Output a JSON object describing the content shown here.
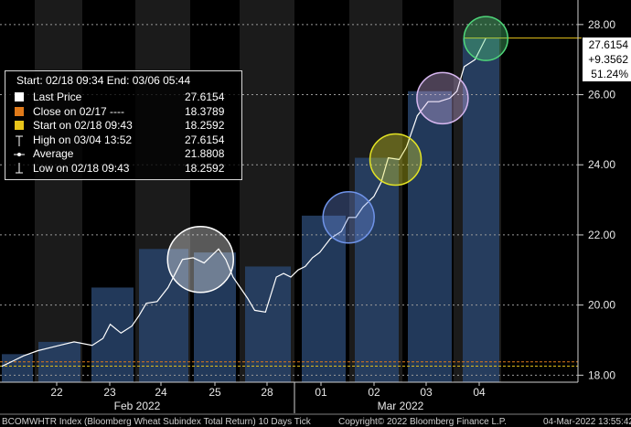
{
  "chart_data": {
    "type": "line",
    "title": "",
    "ylim": [
      17.8,
      28.7
    ],
    "y_ticks": [
      "28.00",
      "26.00",
      "24.00",
      "22.00",
      "20.00",
      "18.00"
    ],
    "x_day_labels": [
      "22",
      "23",
      "24",
      "25",
      "28",
      "01",
      "02",
      "03",
      "04"
    ],
    "month_labels": [
      "Feb 2022",
      "Mar 2022"
    ],
    "series": [
      {
        "name": "Last Price",
        "color": "#ffffff",
        "points": [
          [
            0,
            18.25
          ],
          [
            0.3,
            18.4
          ],
          [
            0.6,
            18.55
          ],
          [
            1.0,
            18.7
          ],
          [
            1.6,
            18.85
          ],
          [
            2.0,
            18.95
          ],
          [
            2.5,
            18.85
          ],
          [
            2.8,
            19.05
          ],
          [
            3.0,
            19.45
          ],
          [
            3.3,
            19.2
          ],
          [
            3.6,
            19.4
          ],
          [
            3.8,
            19.7
          ],
          [
            4.0,
            20.05
          ],
          [
            4.3,
            20.1
          ],
          [
            4.6,
            20.5
          ],
          [
            5.0,
            21.3
          ],
          [
            5.3,
            21.35
          ],
          [
            5.6,
            21.2
          ],
          [
            5.8,
            21.4
          ],
          [
            6.0,
            21.6
          ],
          [
            6.2,
            21.3
          ],
          [
            6.4,
            20.8
          ],
          [
            6.6,
            20.5
          ],
          [
            6.8,
            20.2
          ],
          [
            7.0,
            19.85
          ],
          [
            7.3,
            19.8
          ],
          [
            7.6,
            20.8
          ],
          [
            7.8,
            20.9
          ],
          [
            8.0,
            20.8
          ],
          [
            8.2,
            21.0
          ],
          [
            8.4,
            21.1
          ],
          [
            8.6,
            21.35
          ],
          [
            8.8,
            21.5
          ],
          [
            9.1,
            21.9
          ],
          [
            9.4,
            22.1
          ],
          [
            9.6,
            22.5
          ],
          [
            9.8,
            22.5
          ],
          [
            10.0,
            22.8
          ],
          [
            10.3,
            23.1
          ],
          [
            10.5,
            23.5
          ],
          [
            10.7,
            24.2
          ],
          [
            11.0,
            24.15
          ],
          [
            11.2,
            24.5
          ],
          [
            11.5,
            25.4
          ],
          [
            11.8,
            25.8
          ],
          [
            12.1,
            25.8
          ],
          [
            12.4,
            25.9
          ],
          [
            12.6,
            26.1
          ],
          [
            12.8,
            26.8
          ],
          [
            13.1,
            27.0
          ],
          [
            13.4,
            27.6154
          ]
        ]
      }
    ],
    "daily_bars": [
      {
        "label": "22",
        "high": 18.95
      },
      {
        "label": "23",
        "high": 20.5
      },
      {
        "label": "24",
        "high": 21.6
      },
      {
        "label": "25",
        "high": 21.5
      },
      {
        "label": "28",
        "high": 21.1
      },
      {
        "label": "01",
        "high": 22.55
      },
      {
        "label": "02",
        "high": 24.2
      },
      {
        "label": "03",
        "high": 26.1
      },
      {
        "label": "04",
        "high": 27.6154
      }
    ],
    "reference_lines": [
      {
        "name": "Close on 02/17",
        "value": 18.3789,
        "color": "#e07a1a"
      },
      {
        "name": "Start on 02/18 09:43",
        "value": 18.2592,
        "color": "#e8c41a"
      }
    ],
    "circles": [
      {
        "at": 5.5,
        "y": 21.3,
        "color": "#ffffff"
      },
      {
        "at": 9.6,
        "y": 22.5,
        "color": "#6f93e8"
      },
      {
        "at": 10.9,
        "y": 24.15,
        "color": "#e3e324"
      },
      {
        "at": 12.2,
        "y": 25.9,
        "color": "#d7b7f0"
      },
      {
        "at": 13.4,
        "y": 27.6,
        "color": "#4fd77a"
      }
    ],
    "price_line_value": 27.6154,
    "grid": true,
    "legend_position": "top-left"
  },
  "legend": {
    "header": "Start: 02/18 09:34 End: 03/06 05:44",
    "rows": [
      {
        "label": "Last Price",
        "value": "27.6154",
        "color": "#ffffff",
        "icon": "square"
      },
      {
        "label": "Close on 02/17 ----",
        "value": "18.3789",
        "color": "#e07a1a",
        "icon": "square"
      },
      {
        "label": "Start on 02/18 09:43",
        "value": "18.2592",
        "color": "#e8c41a",
        "icon": "square"
      },
      {
        "label": "High on 03/04 13:52",
        "value": "27.6154",
        "color": "#ffffff",
        "icon": "high-marker"
      },
      {
        "label": "Average",
        "value": "21.8808",
        "color": "#ffffff",
        "icon": "average-marker"
      },
      {
        "label": "Low on 02/18 09:43",
        "value": "18.2592",
        "color": "#ffffff",
        "icon": "low-marker"
      }
    ]
  },
  "price_box": {
    "last": "27.6154",
    "change": "+9.3562",
    "change_pct": "51.24%"
  },
  "footer": {
    "left": "BCOMWHTR Index (Bloomberg Wheat Subindex Total Return) 10 Days  Tick",
    "center": "Copyright© 2022 Bloomberg Finance L.P.",
    "right": "04-Mar-2022 13:55:42"
  }
}
